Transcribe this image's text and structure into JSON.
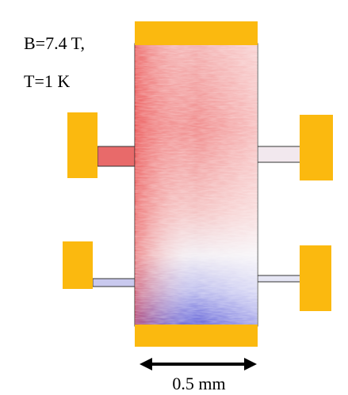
{
  "labels": {
    "field": "B=7.4 T,",
    "temperature": "T=1 K"
  },
  "scale_bar": {
    "label": "0.5 mm"
  }
}
